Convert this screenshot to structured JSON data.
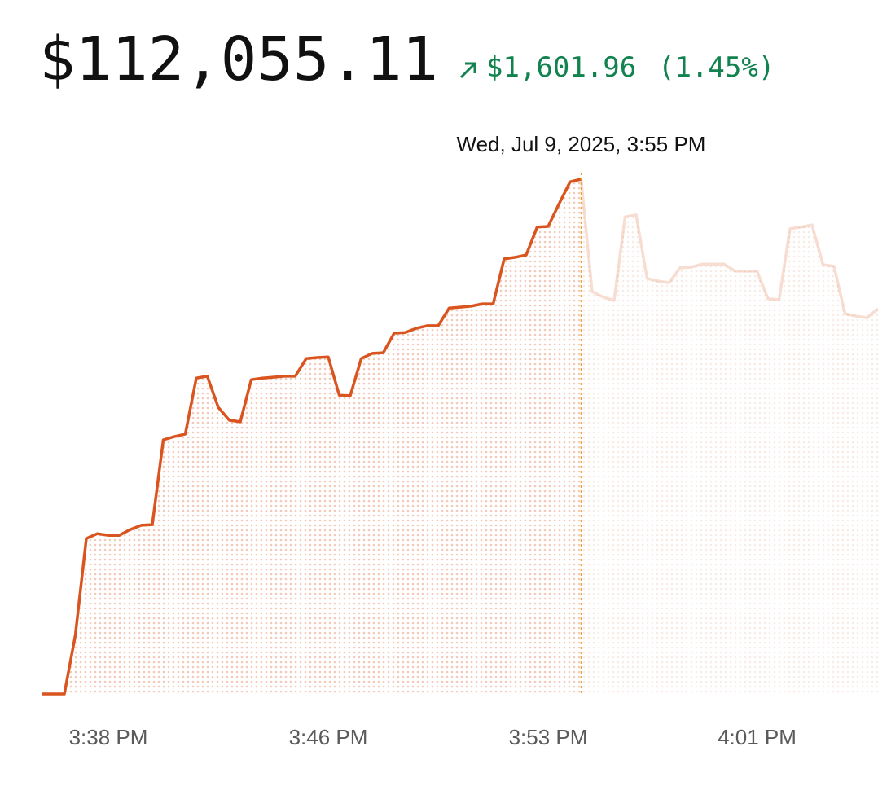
{
  "header": {
    "price": "$112,055.11",
    "change": "$1,601.96",
    "change_percent": "(1.45%)"
  },
  "chart_data": {
    "type": "line",
    "categories": [
      null,
      null,
      null,
      null,
      null,
      null,
      "3:38 PM",
      null,
      null,
      null,
      null,
      null,
      null,
      null,
      null,
      null,
      null,
      null,
      null,
      null,
      null,
      null,
      null,
      null,
      null,
      null,
      "3:46 PM",
      null,
      null,
      null,
      null,
      null,
      null,
      null,
      null,
      null,
      null,
      null,
      null,
      null,
      null,
      null,
      null,
      null,
      null,
      null,
      "3:53 PM",
      null,
      null,
      null,
      null,
      null,
      null,
      null,
      null,
      null,
      null,
      null,
      null,
      null,
      null,
      null,
      null,
      null,
      null,
      "4:01 PM",
      null,
      null,
      null,
      null,
      null,
      null,
      null,
      null,
      null,
      null,
      null
    ],
    "values": [
      110453.15,
      110453.15,
      110453.15,
      110636,
      110937,
      110952,
      110947,
      110947,
      110965,
      110978,
      110980,
      111244,
      111254,
      111262,
      111436,
      111442,
      111345,
      111305,
      111300,
      111431,
      111436,
      111439,
      111442,
      111442,
      111497,
      111500,
      111502,
      111383,
      111381,
      111497,
      111513,
      111515,
      111576,
      111578,
      111591,
      111599,
      111599,
      111654,
      111657,
      111660,
      111667,
      111667,
      111807,
      111812,
      111819,
      111906,
      111908,
      111979,
      112047,
      112055.11,
      111705,
      111688,
      111678,
      111938,
      111944,
      111746,
      111738,
      111733,
      111779,
      111781,
      111791,
      111791,
      111791,
      111769,
      111769,
      111769,
      111683,
      111680,
      111901,
      111906,
      111913,
      111789,
      111784,
      111637,
      111629,
      111624,
      111652
    ],
    "color": "#d9541e",
    "ylim": [
      110453.15,
      112055.11
    ],
    "annotation": {
      "text": "Wed, Jul 9, 2025, 3:55 PM",
      "x": 49
    }
  }
}
